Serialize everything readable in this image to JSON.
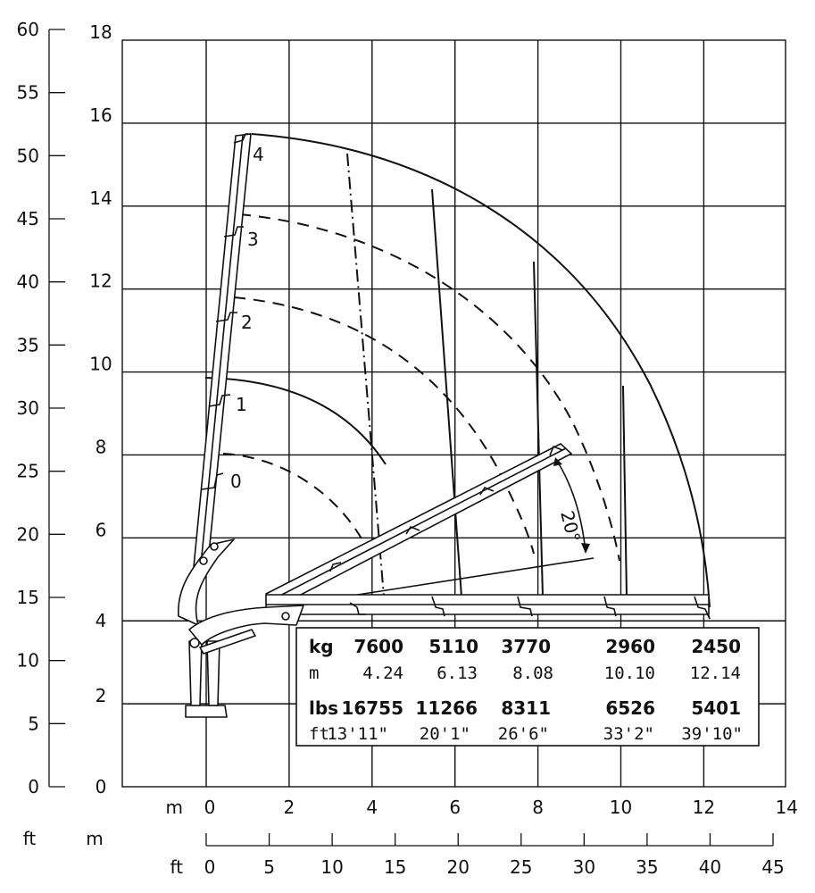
{
  "axes": {
    "left_ft_ticks": [
      "60",
      "55",
      "50",
      "45",
      "40",
      "35",
      "30",
      "25",
      "20",
      "15",
      "10",
      "5",
      "0"
    ],
    "left_m_ticks": [
      "18",
      "16",
      "14",
      "12",
      "10",
      "8",
      "6",
      "4",
      "2",
      "0"
    ],
    "bottom_m_unit": "m",
    "bottom_m_ticks": [
      "0",
      "2",
      "4",
      "6",
      "8",
      "10",
      "12",
      "14"
    ],
    "bottom_ft_ticks": [
      "0",
      "5",
      "10",
      "15",
      "20",
      "25",
      "30",
      "35",
      "40",
      "45"
    ],
    "corner_ft": "ft",
    "corner_m": "m",
    "bottom_ft_unit": "ft"
  },
  "boom_labels": [
    "0",
    "1",
    "2",
    "3",
    "4"
  ],
  "angle_label": "20°",
  "load_table": {
    "kg_label": "kg",
    "kg": [
      "7600",
      "5110",
      "3770",
      "2960",
      "2450"
    ],
    "m_label": "m",
    "m": [
      "4.24",
      "6.13",
      "8.08",
      "10.10",
      "12.14"
    ],
    "lbs_label": "lbs",
    "lbs": [
      "16755",
      "11266",
      "8311",
      "6526",
      "5401"
    ],
    "ft_label": "ft",
    "ft": [
      "13'11\"",
      "20'1\"",
      "26'6\"",
      "33'2\"",
      "39'10\""
    ]
  },
  "chart_data": {
    "type": "table",
    "x_axis_m": [
      0,
      14
    ],
    "y_axis_m": [
      0,
      18
    ],
    "y_axis_ft": [
      0,
      60
    ],
    "x_axis_ft": [
      0,
      45
    ],
    "grid": true,
    "series": [
      {
        "name": "kg",
        "values": [
          7600,
          5110,
          3770,
          2960,
          2450
        ]
      },
      {
        "name": "m",
        "values": [
          4.24,
          6.13,
          8.08,
          10.1,
          12.14
        ]
      },
      {
        "name": "lbs",
        "values": [
          16755,
          11266,
          8311,
          6526,
          5401
        ]
      }
    ]
  }
}
